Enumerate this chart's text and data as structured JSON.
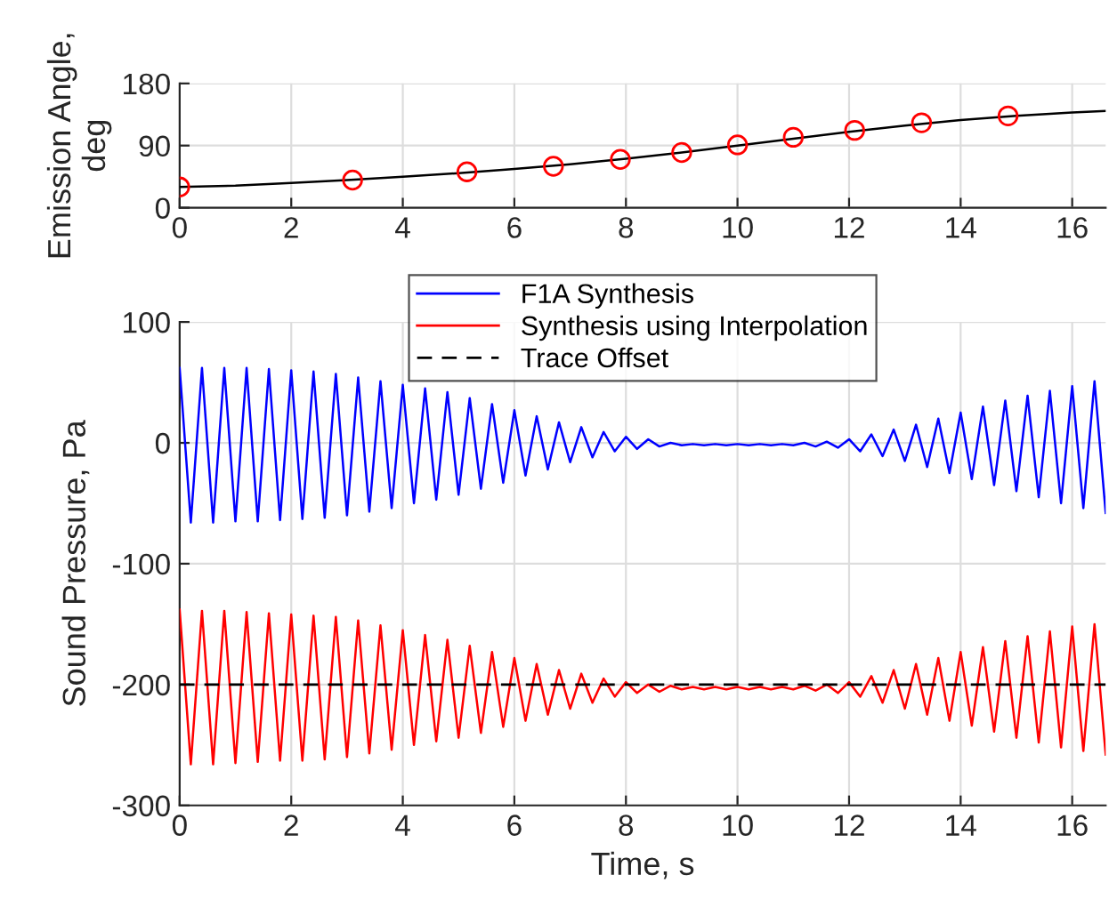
{
  "chart_data": [
    {
      "type": "line",
      "ylabel": "Emission Angle,\ndeg",
      "xlim": [
        0,
        16.6
      ],
      "ylim": [
        0,
        180
      ],
      "xticks": [
        0,
        2,
        4,
        6,
        8,
        10,
        12,
        14,
        16
      ],
      "yticks": [
        0,
        90,
        180
      ],
      "grid": true,
      "legend": false,
      "series": [
        {
          "type": "line",
          "color": "#000000",
          "marker": "none",
          "x": [
            0,
            1,
            2,
            3,
            4,
            5,
            6,
            7,
            8,
            9,
            10,
            11,
            12,
            13,
            14,
            15,
            16,
            16.6
          ],
          "values": [
            30,
            32,
            36,
            40,
            45,
            50,
            56,
            63,
            71,
            80,
            90,
            100,
            110,
            119,
            127,
            133,
            138,
            140
          ]
        },
        {
          "type": "scatter",
          "color": "#ff0000",
          "marker": "circle",
          "x": [
            0,
            3.1,
            5.15,
            6.7,
            7.9,
            9,
            10,
            11,
            12.1,
            13.3,
            14.85
          ],
          "values": [
            30,
            40,
            52,
            60,
            70,
            80,
            91,
            102,
            112,
            123,
            133
          ]
        }
      ]
    },
    {
      "type": "line",
      "xlabel": "Time, s",
      "ylabel": "Sound Pressure, Pa",
      "xlim": [
        0,
        16.6
      ],
      "ylim": [
        -300,
        100
      ],
      "xticks": [
        0,
        2,
        4,
        6,
        8,
        10,
        12,
        14,
        16
      ],
      "yticks": [
        -300,
        -200,
        -100,
        0,
        100
      ],
      "grid": true,
      "legend": "top",
      "line_style": "solid",
      "x": [
        0,
        0.2,
        0.4,
        0.6,
        0.8,
        1.0,
        1.2,
        1.4,
        1.6,
        1.8,
        2.0,
        2.2,
        2.4,
        2.6,
        2.8,
        3.0,
        3.2,
        3.4,
        3.6,
        3.8,
        4.0,
        4.2,
        4.4,
        4.6,
        4.8,
        5.0,
        5.2,
        5.4,
        5.6,
        5.8,
        6.0,
        6.2,
        6.4,
        6.6,
        6.8,
        7.0,
        7.2,
        7.4,
        7.6,
        7.8,
        8.0,
        8.2,
        8.4,
        8.6,
        8.8,
        9.0,
        9.2,
        9.4,
        9.6,
        9.8,
        10.0,
        10.2,
        10.4,
        10.6,
        10.8,
        11.0,
        11.2,
        11.4,
        11.6,
        11.8,
        12.0,
        12.2,
        12.4,
        12.6,
        12.8,
        13.0,
        13.2,
        13.4,
        13.6,
        13.8,
        14.0,
        14.2,
        14.4,
        14.6,
        14.8,
        15.0,
        15.2,
        15.4,
        15.6,
        15.8,
        16.0,
        16.2,
        16.4,
        16.6
      ],
      "series": [
        {
          "name": "F1A Synthesis",
          "color": "#0000ff",
          "values": [
            62,
            -66,
            62,
            -66,
            62,
            -65,
            62,
            -65,
            61,
            -64,
            60,
            -63,
            59,
            -62,
            57,
            -60,
            54,
            -57,
            51,
            -54,
            48,
            -50,
            45,
            -47,
            42,
            -43,
            37,
            -38,
            32,
            -33,
            27,
            -27,
            22,
            -22,
            17,
            -16,
            13,
            -12,
            9,
            -7,
            5,
            -5,
            3,
            -3,
            0,
            -2,
            -1,
            -2,
            -1,
            -2,
            -1,
            -2,
            -1,
            -2,
            -1,
            -2,
            0,
            -3,
            1,
            -4,
            3,
            -7,
            7,
            -11,
            11,
            -15,
            15,
            -20,
            20,
            -25,
            25,
            -30,
            30,
            -35,
            35,
            -40,
            39,
            -45,
            43,
            -50,
            47,
            -54,
            51,
            -58
          ]
        },
        {
          "name": "Synthesis using Interpolation",
          "color": "#ff0000",
          "values": [
            -138,
            -266,
            -139,
            -266,
            -139,
            -265,
            -140,
            -264,
            -141,
            -263,
            -142,
            -263,
            -143,
            -262,
            -144,
            -260,
            -147,
            -257,
            -151,
            -254,
            -155,
            -250,
            -159,
            -247,
            -163,
            -244,
            -168,
            -240,
            -173,
            -235,
            -178,
            -230,
            -183,
            -225,
            -188,
            -220,
            -191,
            -215,
            -195,
            -210,
            -198,
            -207,
            -200,
            -206,
            -201,
            -204,
            -202,
            -204,
            -202,
            -204,
            -202,
            -204,
            -202,
            -204,
            -202,
            -204,
            -201,
            -205,
            -200,
            -207,
            -198,
            -210,
            -193,
            -215,
            -188,
            -220,
            -183,
            -225,
            -178,
            -230,
            -173,
            -234,
            -169,
            -239,
            -164,
            -244,
            -160,
            -248,
            -156,
            -252,
            -152,
            -255,
            -150,
            -258
          ]
        }
      ],
      "ref_lines": [
        {
          "axis": "y",
          "value": -200,
          "label": "Trace Offset",
          "color": "#000000",
          "line_style": "dashed"
        }
      ]
    }
  ]
}
